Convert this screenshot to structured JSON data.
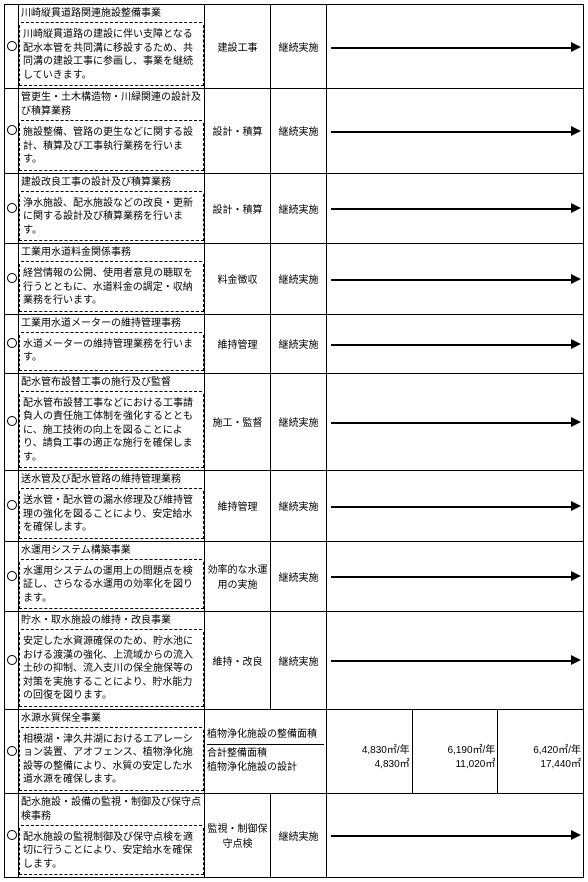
{
  "rows": [
    {
      "marker": "○",
      "title": "川崎縦貫道路関連施設整備事業",
      "body": "川崎縦貫道路の建設に伴い支障となる配水本管を共同溝に移設するため、共同溝の建設工事に参画し、事業を継続していきます。",
      "type": "建設工事",
      "status": "継続実施",
      "mode": "arrow"
    },
    {
      "marker": "○",
      "title": "管更生・土木構造物・川緑関連の設計及び積算業務",
      "body": "施設整備、管路の更生などに関する設計、積算及び工事執行業務を行います。",
      "type": "設計・積算",
      "status": "継続実施",
      "mode": "arrow"
    },
    {
      "marker": "○",
      "title": "建設改良工事の設計及び積算業務",
      "body": "浄水施設、配水施設などの改良・更新に関する設計及び積算業務を行います。",
      "type": "設計・積算",
      "status": "継続実施",
      "mode": "arrow"
    },
    {
      "marker": "○",
      "title": "工業用水道料金関係事務",
      "body": "経営情報の公開、使用者意見の聴取を行うとともに、水道料金の調定・収納業務を行います。",
      "type": "料金徴収",
      "status": "継続実施",
      "mode": "arrow"
    },
    {
      "marker": "○",
      "title": "工業用水道メーターの維持管理事務",
      "body": "水道メーターの維持管理業務を行います。",
      "type": "維持管理",
      "status": "継続実施",
      "mode": "arrow"
    },
    {
      "marker": "○",
      "title": "配水管布設替工事の施行及び監督",
      "body": "配水管布設替工事などにおける工事請負人の責任施工体制を強化するとともに、施工技術の向上を図ることにより、請負工事の適正な施行を確保します。",
      "type": "施工・監督",
      "status": "継続実施",
      "mode": "arrow",
      "large": true
    },
    {
      "marker": "○",
      "title": "送水管及び配水管路の維持管理業務",
      "body": "送水管・配水管の漏水修理及び維持管理の強化を図ることにより、安定給水を確保します。",
      "type": "維持管理",
      "status": "継続実施",
      "mode": "arrow"
    },
    {
      "marker": "○",
      "title": "水運用システム構築事業",
      "body": "水運用システムの運用上の問題点を検証し、さらなる水運用の効率化を図ります。",
      "type": "効率的な水運用の実施",
      "status": "継続実施",
      "mode": "arrow"
    },
    {
      "marker": "○",
      "title": "貯水・取水施設の維持・改良事業",
      "body": "安定した水資源確保のため、貯水池における渡漢の強化、上流域からの流入土砂の抑制、流入支川の保全施保等の対策を実施することにより、貯水能力の回復を図ります。",
      "type": "維持・改良",
      "status": "継続実施",
      "mode": "arrow",
      "large": true
    },
    {
      "marker": "○",
      "title": "水源水質保全事業",
      "body": "相模湖・津久井湖におけるエアレーション装置、アオフェンス、植物浄化施設等の整備により、水質の安定した水道水源を確保します。",
      "mode": "special",
      "special": {
        "topLabel": "植物浄化施設の整備面積",
        "leftLabel1": "合計整備面積",
        "leftLabel2": "植物浄化施設の設計",
        "c1a": "4,830㎡/年",
        "c1b": "4,830㎡",
        "c2a": "6,190㎡/年",
        "c2b": "11,020㎡",
        "c3a": "6,420㎡/年",
        "c3b": "17,440㎡"
      },
      "large": true
    },
    {
      "marker": "○",
      "title": "配水施設・設備の監視・制御及び保守点検事務",
      "body": "配水施設の監視制御及び保守点検を適切に行うことにより、安定給水を確保します。",
      "type": "監視・制御保守点検",
      "status": "継続実施",
      "mode": "arrow"
    }
  ]
}
